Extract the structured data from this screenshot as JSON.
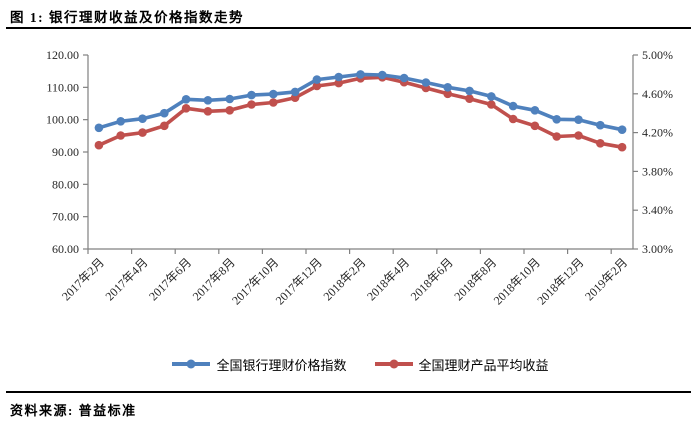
{
  "figure": {
    "title": "图 1: 银行理财收益及价格指数走势",
    "source_note": "资料来源: 普益标准"
  },
  "chart_data": {
    "type": "line",
    "title": "图 1: 银行理财收益及价格指数走势",
    "grid": false,
    "legend_position": "bottom",
    "x": [
      "2017年2月",
      "2017年3月",
      "2017年4月",
      "2017年5月",
      "2017年6月",
      "2017年7月",
      "2017年8月",
      "2017年9月",
      "2017年10月",
      "2017年11月",
      "2017年12月",
      "2018年1月",
      "2018年2月",
      "2018年3月",
      "2018年4月",
      "2018年5月",
      "2018年6月",
      "2018年7月",
      "2018年8月",
      "2018年9月",
      "2018年10月",
      "2018年11月",
      "2018年12月",
      "2019年1月",
      "2019年2月"
    ],
    "x_tick_labels": [
      "2017年2月",
      "2017年4月",
      "2017年6月",
      "2017年8月",
      "2017年10月",
      "2017年12月",
      "2018年2月",
      "2018年4月",
      "2018年6月",
      "2018年8月",
      "2018年10月",
      "2018年12月",
      "2019年2月"
    ],
    "series": [
      {
        "name": "全国银行理财价格指数",
        "axis": "left",
        "color": "#4F81BD",
        "marker": "circle",
        "values": [
          97.5,
          99.5,
          100.3,
          102.0,
          106.3,
          106.0,
          106.4,
          107.6,
          107.9,
          108.6,
          112.4,
          113.2,
          114.0,
          113.8,
          112.9,
          111.5,
          110.0,
          108.9,
          107.2,
          104.2,
          102.9,
          100.1,
          100.0,
          98.3,
          96.9
        ]
      },
      {
        "name": "全国理财产品平均收益",
        "axis": "right",
        "color": "#C0504D",
        "marker": "circle",
        "values": [
          4.07,
          4.17,
          4.2,
          4.27,
          4.45,
          4.42,
          4.43,
          4.49,
          4.51,
          4.56,
          4.68,
          4.71,
          4.76,
          4.77,
          4.72,
          4.66,
          4.6,
          4.55,
          4.49,
          4.34,
          4.27,
          4.16,
          4.17,
          4.09,
          4.05
        ]
      }
    ],
    "left_axis": {
      "min": 60,
      "max": 120,
      "step": 10,
      "tick_labels": [
        "120.00",
        "110.00",
        "100.00",
        "90.00",
        "80.00",
        "70.00",
        "60.00"
      ]
    },
    "right_axis": {
      "min": 3.0,
      "max": 5.0,
      "step": 0.4,
      "tick_labels": [
        "5.00%",
        "4.60%",
        "4.20%",
        "3.80%",
        "3.40%",
        "3.00%"
      ]
    }
  }
}
